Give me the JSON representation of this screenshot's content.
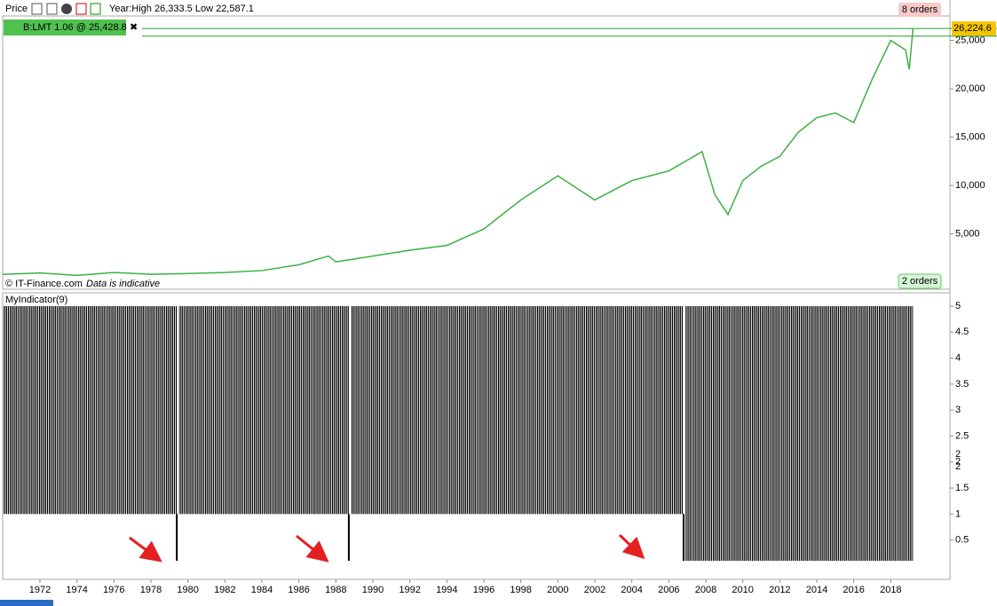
{
  "ui": {
    "pane_title": "Price",
    "year_info": "Year:High 26,333.5 Low 22,587.1",
    "position": "B:LMT  1.06 @ 25,428.8",
    "orders_top": "8 orders",
    "orders_bottom": "2 orders",
    "copyright": "© IT-Finance.com",
    "indicative": "Data is indicative",
    "indicator_name": "MyIndicator(9)",
    "indicator_last": [
      "2",
      "2"
    ]
  },
  "chart_data": [
    {
      "type": "line",
      "xlim": [
        1970,
        2021.2
      ],
      "ylim": [
        -640,
        27520
      ],
      "yticks": [
        {
          "value": 5000,
          "label": "5,000"
        },
        {
          "value": 10000,
          "label": "10,000"
        },
        {
          "value": 15000,
          "label": "15,000"
        },
        {
          "value": 20000,
          "label": "20,000"
        },
        {
          "value": 25000,
          "label": "25,000"
        }
      ],
      "hlines": [
        {
          "value": 26224.6,
          "label": "26,224.6"
        },
        {
          "value": 25428.8
        }
      ],
      "series": [
        {
          "color": "#3cb043",
          "x": [
            1970,
            1972,
            1974,
            1976,
            1978,
            1980,
            1982,
            1984,
            1986,
            1987.6,
            1988,
            1990,
            1992,
            1994,
            1996,
            1998,
            2000,
            2002,
            2003,
            2004,
            2006,
            2007.8,
            2008.5,
            2009.2,
            2010,
            2011,
            2012,
            2013,
            2014,
            2015,
            2016,
            2017,
            2018,
            2018.8,
            2019,
            2019.2
          ],
          "values": [
            800,
            950,
            700,
            1000,
            820,
            900,
            1000,
            1200,
            1800,
            2700,
            2100,
            2700,
            3300,
            3800,
            5500,
            8500,
            11000,
            8500,
            9500,
            10500,
            11500,
            13500,
            9000,
            7000,
            10500,
            12000,
            13000,
            15500,
            17000,
            17500,
            16500,
            21000,
            25000,
            24000,
            22000,
            26200
          ]
        }
      ]
    },
    {
      "type": "range",
      "xlim": [
        1970,
        2021.2
      ],
      "ylim": [
        -0.24,
        5.12
      ],
      "yticks": [
        0.5,
        1,
        1.5,
        2,
        2.5,
        3,
        3.5,
        4,
        4.5,
        5
      ],
      "xticks": [
        1972,
        1974,
        1976,
        1978,
        1980,
        1982,
        1984,
        1986,
        1988,
        1990,
        1992,
        1994,
        1996,
        1998,
        2000,
        2002,
        2004,
        2006,
        2008,
        2010,
        2012,
        2014,
        2016,
        2018
      ],
      "segments": [
        {
          "x": [
            1970,
            1979.4
          ],
          "range": [
            1,
            5
          ]
        },
        {
          "x": [
            1979.5,
            1988.7
          ],
          "range": [
            1,
            5
          ]
        },
        {
          "x": [
            1988.8,
            2006.8
          ],
          "range": [
            1,
            5
          ]
        },
        {
          "x": [
            2006.9,
            2019.2
          ],
          "range": [
            0.1,
            5
          ]
        }
      ],
      "dips": {
        "x": [
          1979.4,
          1988.7,
          2006.8
        ],
        "values": [
          0.1,
          0.1,
          0.1
        ]
      }
    }
  ]
}
